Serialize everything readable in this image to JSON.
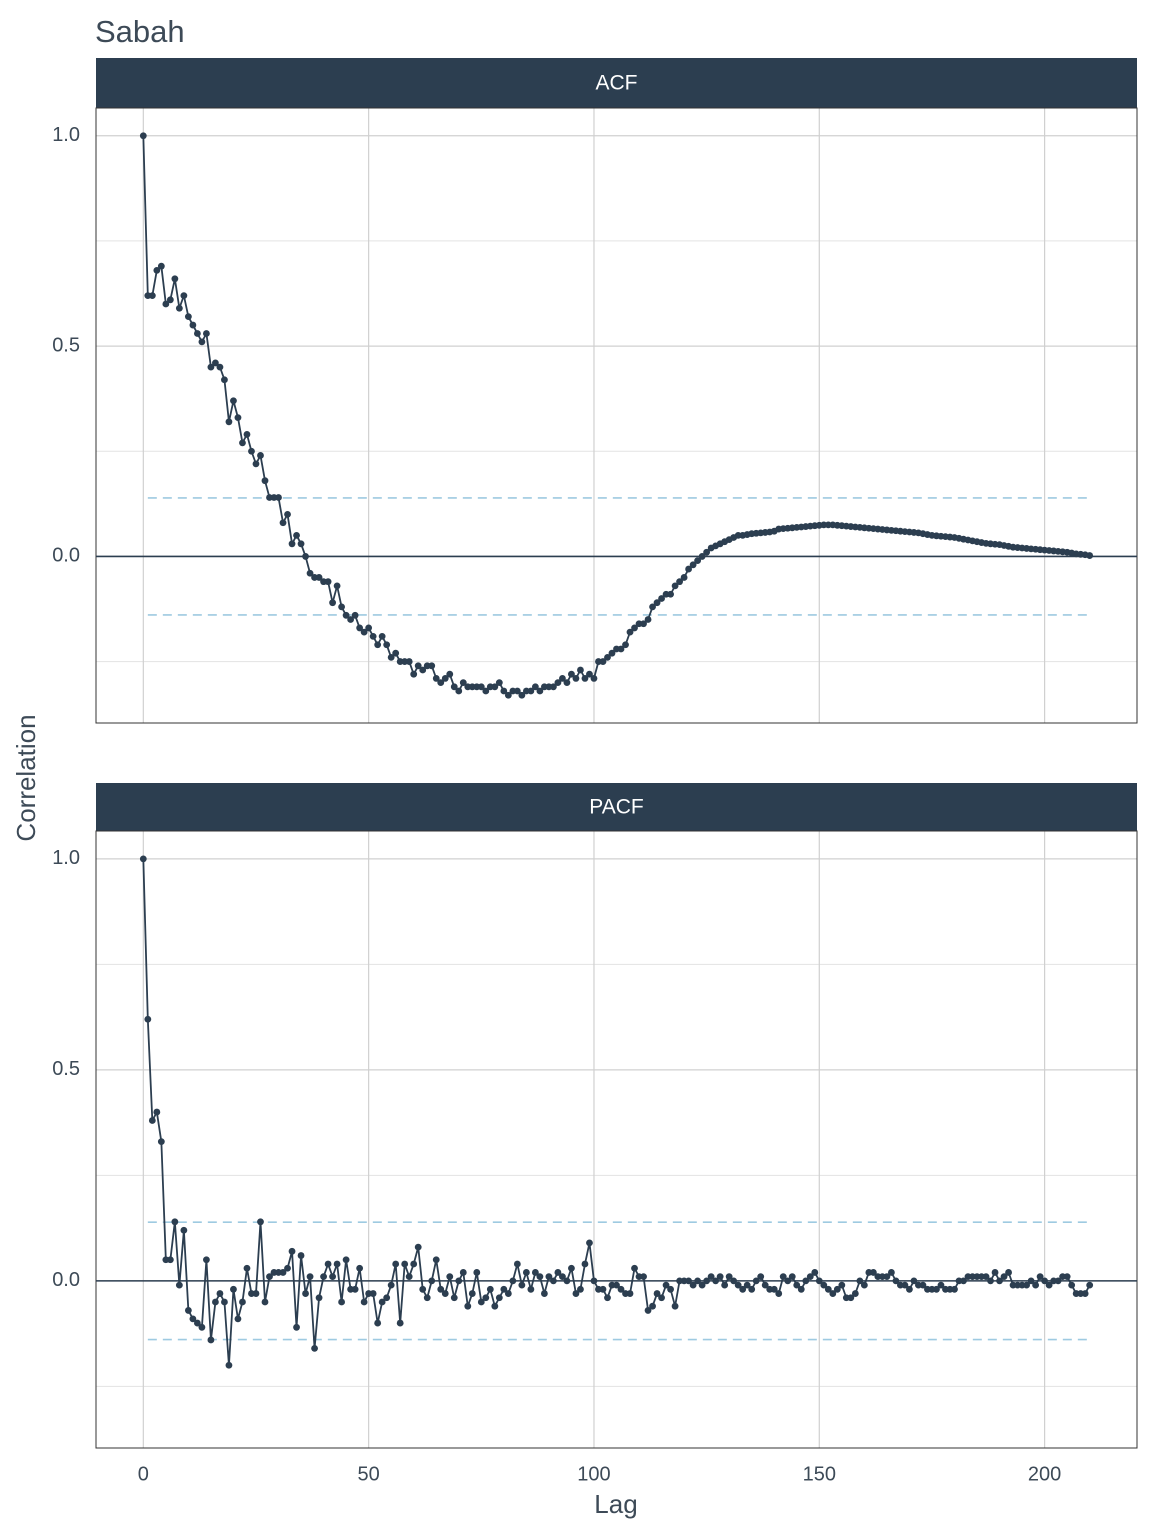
{
  "title": "Sabah",
  "x_label": "Lag",
  "y_label": "Correlation",
  "chart_data": [
    {
      "type": "line",
      "panel_title": "ACF",
      "color": "#2c3e50",
      "band_color": "#9ecae1",
      "conf_limit": 0.139,
      "hline": 0,
      "xlim": [
        -10.5,
        220.5
      ],
      "xticks": [
        0,
        50,
        100,
        150,
        200
      ],
      "ylim": [
        -0.396,
        1.066
      ],
      "yticks": [
        {
          "value": 0,
          "label": "0.0"
        },
        {
          "value": 0.5,
          "label": "0.5"
        },
        {
          "value": 1,
          "label": "1.0"
        }
      ],
      "y_minor_ticks": [
        -0.25,
        0.25,
        0.75
      ],
      "grid": true,
      "x": [
        0,
        1,
        2,
        3,
        4,
        5,
        6,
        7,
        8,
        9,
        10,
        11,
        12,
        13,
        14,
        15,
        16,
        17,
        18,
        19,
        20,
        21,
        22,
        23,
        24,
        25,
        26,
        27,
        28,
        29,
        30,
        31,
        32,
        33,
        34,
        35,
        36,
        37,
        38,
        39,
        40,
        41,
        42,
        43,
        44,
        45,
        46,
        47,
        48,
        49,
        50,
        51,
        52,
        53,
        54,
        55,
        56,
        57,
        58,
        59,
        60,
        61,
        62,
        63,
        64,
        65,
        66,
        67,
        68,
        69,
        70,
        71,
        72,
        73,
        74,
        75,
        76,
        77,
        78,
        79,
        80,
        81,
        82,
        83,
        84,
        85,
        86,
        87,
        88,
        89,
        90,
        91,
        92,
        93,
        94,
        95,
        96,
        97,
        98,
        99,
        100,
        101,
        102,
        103,
        104,
        105,
        106,
        107,
        108,
        109,
        110,
        111,
        112,
        113,
        114,
        115,
        116,
        117,
        118,
        119,
        120,
        121,
        122,
        123,
        124,
        125,
        126,
        127,
        128,
        129,
        130,
        131,
        132,
        133,
        134,
        135,
        136,
        137,
        138,
        139,
        140,
        141,
        142,
        143,
        144,
        145,
        146,
        147,
        148,
        149,
        150,
        151,
        152,
        153,
        154,
        155,
        156,
        157,
        158,
        159,
        160,
        161,
        162,
        163,
        164,
        165,
        166,
        167,
        168,
        169,
        170,
        171,
        172,
        173,
        174,
        175,
        176,
        177,
        178,
        179,
        180,
        181,
        182,
        183,
        184,
        185,
        186,
        187,
        188,
        189,
        190,
        191,
        192,
        193,
        194,
        195,
        196,
        197,
        198,
        199,
        200,
        201,
        202,
        203,
        204,
        205,
        206,
        207,
        208,
        209,
        210
      ],
      "values": [
        1,
        0.62,
        0.62,
        0.68,
        0.69,
        0.6,
        0.61,
        0.66,
        0.59,
        0.62,
        0.57,
        0.55,
        0.53,
        0.51,
        0.53,
        0.45,
        0.46,
        0.45,
        0.42,
        0.32,
        0.37,
        0.33,
        0.27,
        0.29,
        0.25,
        0.22,
        0.24,
        0.18,
        0.14,
        0.14,
        0.14,
        0.08,
        0.1,
        0.03,
        0.05,
        0.03,
        0,
        -0.04,
        -0.05,
        -0.05,
        -0.06,
        -0.06,
        -0.11,
        -0.07,
        -0.12,
        -0.14,
        -0.15,
        -0.14,
        -0.17,
        -0.18,
        -0.17,
        -0.19,
        -0.21,
        -0.19,
        -0.21,
        -0.24,
        -0.23,
        -0.25,
        -0.25,
        -0.25,
        -0.28,
        -0.26,
        -0.27,
        -0.26,
        -0.26,
        -0.29,
        -0.3,
        -0.29,
        -0.28,
        -0.31,
        -0.32,
        -0.3,
        -0.31,
        -0.31,
        -0.31,
        -0.31,
        -0.32,
        -0.31,
        -0.31,
        -0.3,
        -0.32,
        -0.33,
        -0.32,
        -0.32,
        -0.33,
        -0.32,
        -0.32,
        -0.31,
        -0.32,
        -0.31,
        -0.31,
        -0.31,
        -0.3,
        -0.29,
        -0.3,
        -0.28,
        -0.29,
        -0.27,
        -0.29,
        -0.28,
        -0.29,
        -0.25,
        -0.25,
        -0.24,
        -0.23,
        -0.22,
        -0.22,
        -0.21,
        -0.18,
        -0.17,
        -0.16,
        -0.16,
        -0.15,
        -0.12,
        -0.11,
        -0.1,
        -0.09,
        -0.09,
        -0.07,
        -0.06,
        -0.05,
        -0.03,
        -0.02,
        -0.01,
        0,
        0.01,
        0.02,
        0.025,
        0.03,
        0.035,
        0.04,
        0.045,
        0.05,
        0.05,
        0.052,
        0.054,
        0.055,
        0.056,
        0.057,
        0.058,
        0.06,
        0.065,
        0.066,
        0.067,
        0.068,
        0.069,
        0.07,
        0.071,
        0.072,
        0.073,
        0.074,
        0.075,
        0.075,
        0.075,
        0.074,
        0.073,
        0.072,
        0.071,
        0.07,
        0.069,
        0.068,
        0.067,
        0.066,
        0.065,
        0.064,
        0.063,
        0.062,
        0.061,
        0.06,
        0.059,
        0.058,
        0.057,
        0.056,
        0.054,
        0.052,
        0.05,
        0.049,
        0.048,
        0.047,
        0.046,
        0.045,
        0.043,
        0.041,
        0.039,
        0.037,
        0.035,
        0.033,
        0.031,
        0.03,
        0.029,
        0.028,
        0.026,
        0.024,
        0.022,
        0.021,
        0.02,
        0.019,
        0.018,
        0.017,
        0.016,
        0.015,
        0.014,
        0.013,
        0.012,
        0.011,
        0.01,
        0.008,
        0.006,
        0.005,
        0.004,
        0.002
      ]
    },
    {
      "type": "line",
      "panel_title": "PACF",
      "color": "#2c3e50",
      "band_color": "#9ecae1",
      "conf_limit": 0.139,
      "hline": 0,
      "xlim": [
        -10.5,
        220.5
      ],
      "xticks": [
        0,
        50,
        100,
        150,
        200
      ],
      "ylim": [
        -0.396,
        1.066
      ],
      "yticks": [
        {
          "value": 0,
          "label": "0.0"
        },
        {
          "value": 0.5,
          "label": "0.5"
        },
        {
          "value": 1,
          "label": "1.0"
        }
      ],
      "y_minor_ticks": [
        -0.25,
        0.25,
        0.75
      ],
      "grid": true,
      "x": [
        0,
        1,
        2,
        3,
        4,
        5,
        6,
        7,
        8,
        9,
        10,
        11,
        12,
        13,
        14,
        15,
        16,
        17,
        18,
        19,
        20,
        21,
        22,
        23,
        24,
        25,
        26,
        27,
        28,
        29,
        30,
        31,
        32,
        33,
        34,
        35,
        36,
        37,
        38,
        39,
        40,
        41,
        42,
        43,
        44,
        45,
        46,
        47,
        48,
        49,
        50,
        51,
        52,
        53,
        54,
        55,
        56,
        57,
        58,
        59,
        60,
        61,
        62,
        63,
        64,
        65,
        66,
        67,
        68,
        69,
        70,
        71,
        72,
        73,
        74,
        75,
        76,
        77,
        78,
        79,
        80,
        81,
        82,
        83,
        84,
        85,
        86,
        87,
        88,
        89,
        90,
        91,
        92,
        93,
        94,
        95,
        96,
        97,
        98,
        99,
        100,
        101,
        102,
        103,
        104,
        105,
        106,
        107,
        108,
        109,
        110,
        111,
        112,
        113,
        114,
        115,
        116,
        117,
        118,
        119,
        120,
        121,
        122,
        123,
        124,
        125,
        126,
        127,
        128,
        129,
        130,
        131,
        132,
        133,
        134,
        135,
        136,
        137,
        138,
        139,
        140,
        141,
        142,
        143,
        144,
        145,
        146,
        147,
        148,
        149,
        150,
        151,
        152,
        153,
        154,
        155,
        156,
        157,
        158,
        159,
        160,
        161,
        162,
        163,
        164,
        165,
        166,
        167,
        168,
        169,
        170,
        171,
        172,
        173,
        174,
        175,
        176,
        177,
        178,
        179,
        180,
        181,
        182,
        183,
        184,
        185,
        186,
        187,
        188,
        189,
        190,
        191,
        192,
        193,
        194,
        195,
        196,
        197,
        198,
        199,
        200,
        201,
        202,
        203,
        204,
        205,
        206,
        207,
        208,
        209,
        210
      ],
      "values": [
        1,
        0.62,
        0.38,
        0.4,
        0.33,
        0.05,
        0.05,
        0.14,
        -0.01,
        0.12,
        -0.07,
        -0.09,
        -0.1,
        -0.11,
        0.05,
        -0.14,
        -0.05,
        -0.03,
        -0.05,
        -0.2,
        -0.02,
        -0.09,
        -0.05,
        0.03,
        -0.03,
        -0.03,
        0.14,
        -0.05,
        0.01,
        0.02,
        0.02,
        0.02,
        0.03,
        0.07,
        -0.11,
        0.06,
        -0.03,
        0.01,
        -0.16,
        -0.04,
        0.01,
        0.04,
        0.01,
        0.04,
        -0.05,
        0.05,
        -0.02,
        -0.02,
        0.03,
        -0.05,
        -0.03,
        -0.03,
        -0.1,
        -0.05,
        -0.04,
        -0.01,
        0.04,
        -0.1,
        0.04,
        0.01,
        0.04,
        0.08,
        -0.02,
        -0.04,
        0,
        0.05,
        -0.02,
        -0.03,
        0.01,
        -0.04,
        0,
        0.02,
        -0.06,
        -0.03,
        0.02,
        -0.05,
        -0.04,
        -0.02,
        -0.06,
        -0.04,
        -0.02,
        -0.03,
        0,
        0.04,
        -0.01,
        0.02,
        -0.02,
        0.02,
        0.01,
        -0.03,
        0.01,
        0,
        0.02,
        0.01,
        0,
        0.03,
        -0.03,
        -0.02,
        0.04,
        0.09,
        0,
        -0.02,
        -0.02,
        -0.04,
        -0.01,
        -0.01,
        -0.02,
        -0.03,
        -0.03,
        0.03,
        0.01,
        0.01,
        -0.07,
        -0.06,
        -0.03,
        -0.04,
        -0.01,
        -0.02,
        -0.06,
        0,
        0,
        0,
        -0.01,
        0,
        -0.01,
        0,
        0.01,
        0,
        0.01,
        -0.01,
        0.01,
        0,
        -0.01,
        -0.02,
        -0.01,
        -0.02,
        0,
        0.01,
        -0.01,
        -0.02,
        -0.02,
        -0.03,
        0.01,
        0,
        0.01,
        -0.01,
        -0.02,
        0,
        0.01,
        0.02,
        0,
        -0.01,
        -0.02,
        -0.03,
        -0.02,
        -0.01,
        -0.04,
        -0.04,
        -0.03,
        0,
        -0.01,
        0.02,
        0.02,
        0.01,
        0.01,
        0.01,
        0.02,
        0,
        -0.01,
        -0.01,
        -0.02,
        0,
        -0.01,
        -0.01,
        -0.02,
        -0.02,
        -0.02,
        -0.01,
        -0.02,
        -0.02,
        -0.02,
        0,
        0,
        0.01,
        0.01,
        0.01,
        0.01,
        0.01,
        0,
        0.02,
        0,
        0.01,
        0.02,
        -0.01,
        -0.01,
        -0.01,
        -0.01,
        0,
        -0.01,
        0.01,
        0,
        -0.01,
        0,
        0,
        0.01,
        0.01,
        -0.01,
        -0.03,
        -0.03,
        -0.03,
        -0.01
      ]
    }
  ]
}
